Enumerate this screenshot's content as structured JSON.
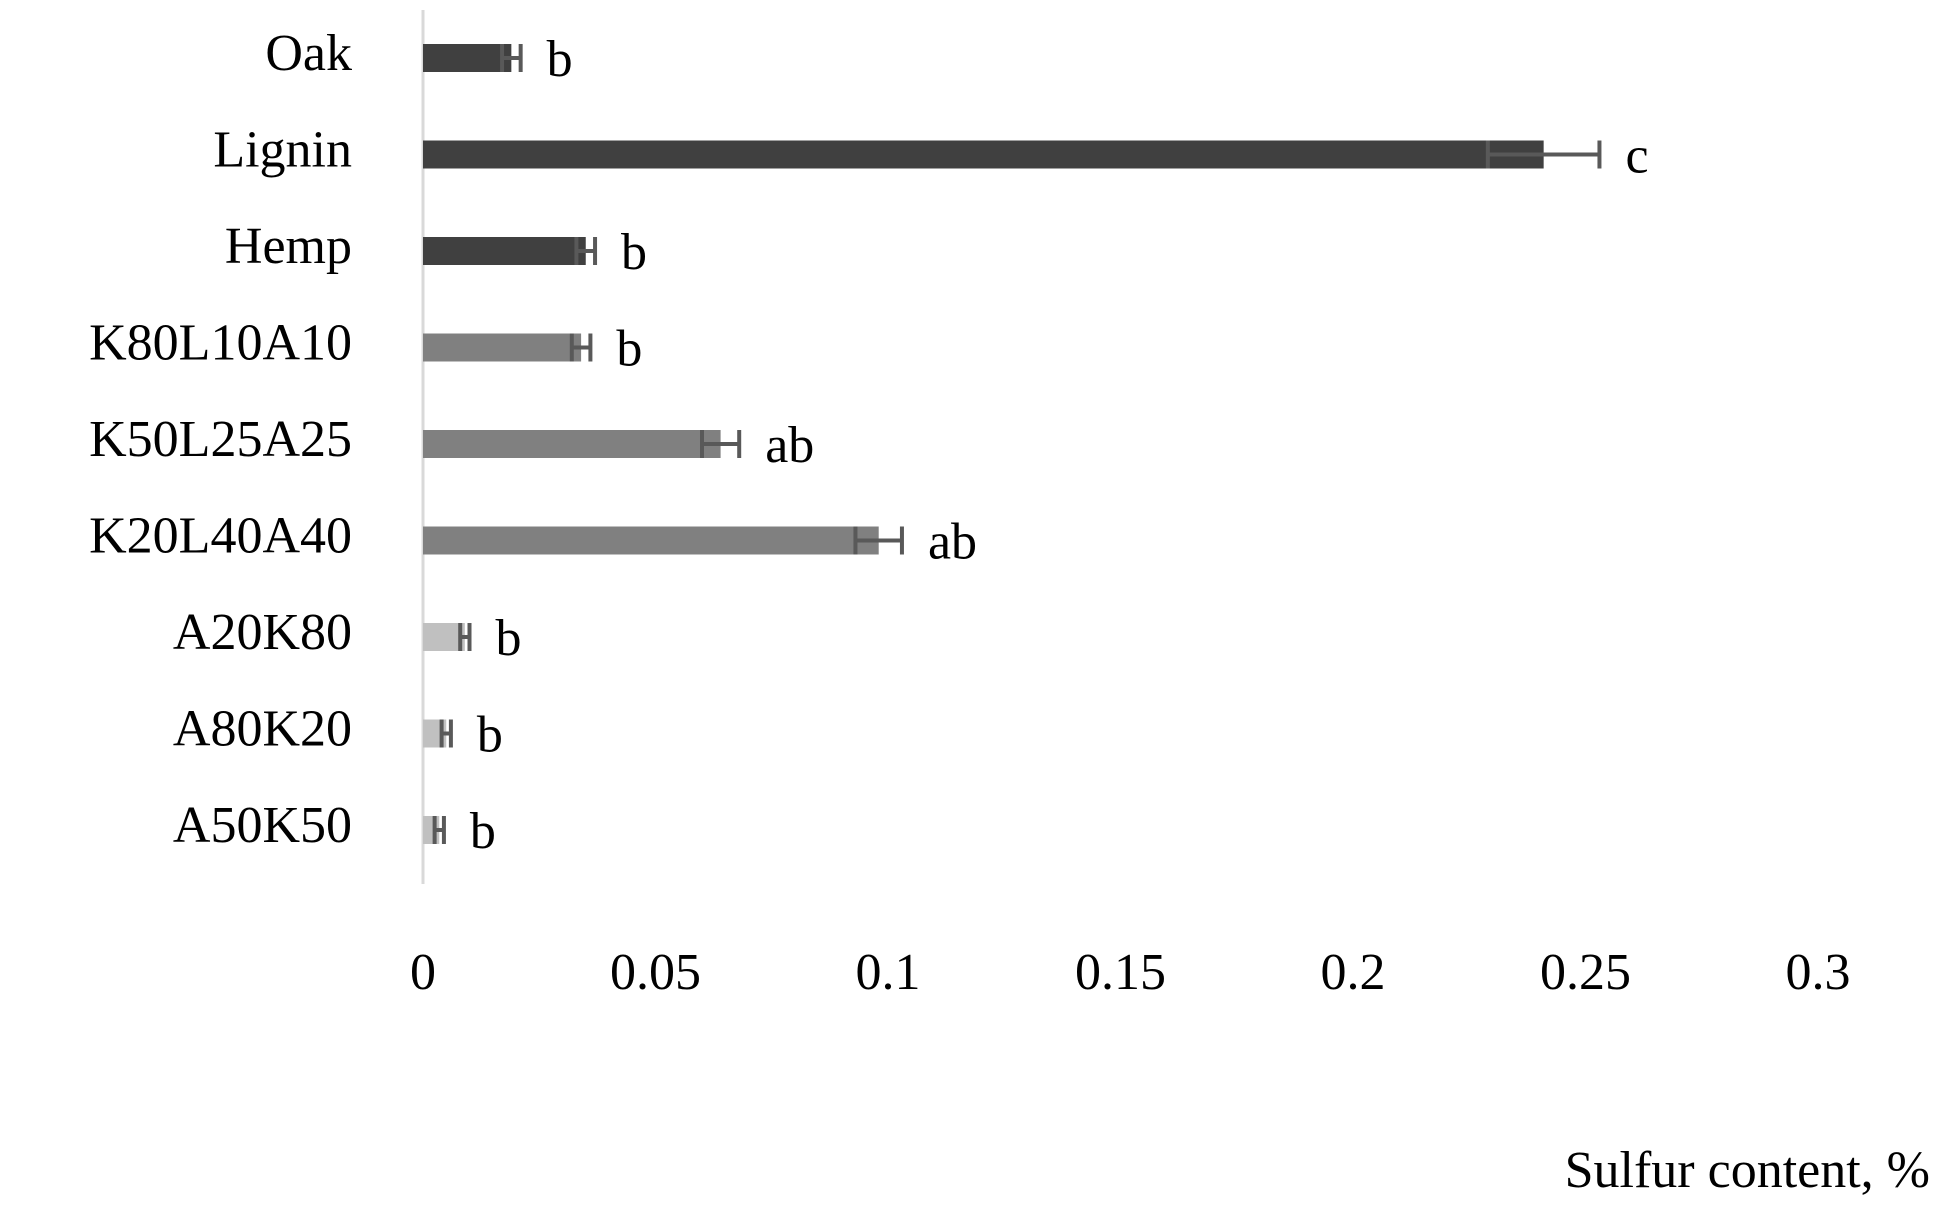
{
  "chart_data": {
    "type": "bar",
    "orientation": "horizontal",
    "x_label": "Sulfur content, %",
    "categories": [
      "Oak",
      "Lignin",
      "Hemp",
      "K80L10A10",
      "K50L25A25",
      "K20L40A40",
      "A20K80",
      "A80K20",
      "A50K50"
    ],
    "values": [
      0.019,
      0.241,
      0.035,
      0.034,
      0.064,
      0.098,
      0.009,
      0.005,
      0.0035
    ],
    "errors": [
      0.002,
      0.012,
      0.002,
      0.002,
      0.004,
      0.005,
      0.001,
      0.001,
      0.001
    ],
    "value_labels": [
      "b",
      "c",
      "b",
      "b",
      "ab",
      "ab",
      "b",
      "b",
      "b"
    ],
    "colors": [
      "#404040",
      "#404040",
      "#404040",
      "#808080",
      "#808080",
      "#808080",
      "#c0c0c0",
      "#c0c0c0",
      "#c0c0c0"
    ],
    "error_color": "#595959",
    "xlim": [
      0,
      0.3
    ],
    "xticks": [
      0,
      0.05,
      0.1,
      0.15,
      0.2,
      0.25,
      0.3
    ],
    "grid": false
  }
}
